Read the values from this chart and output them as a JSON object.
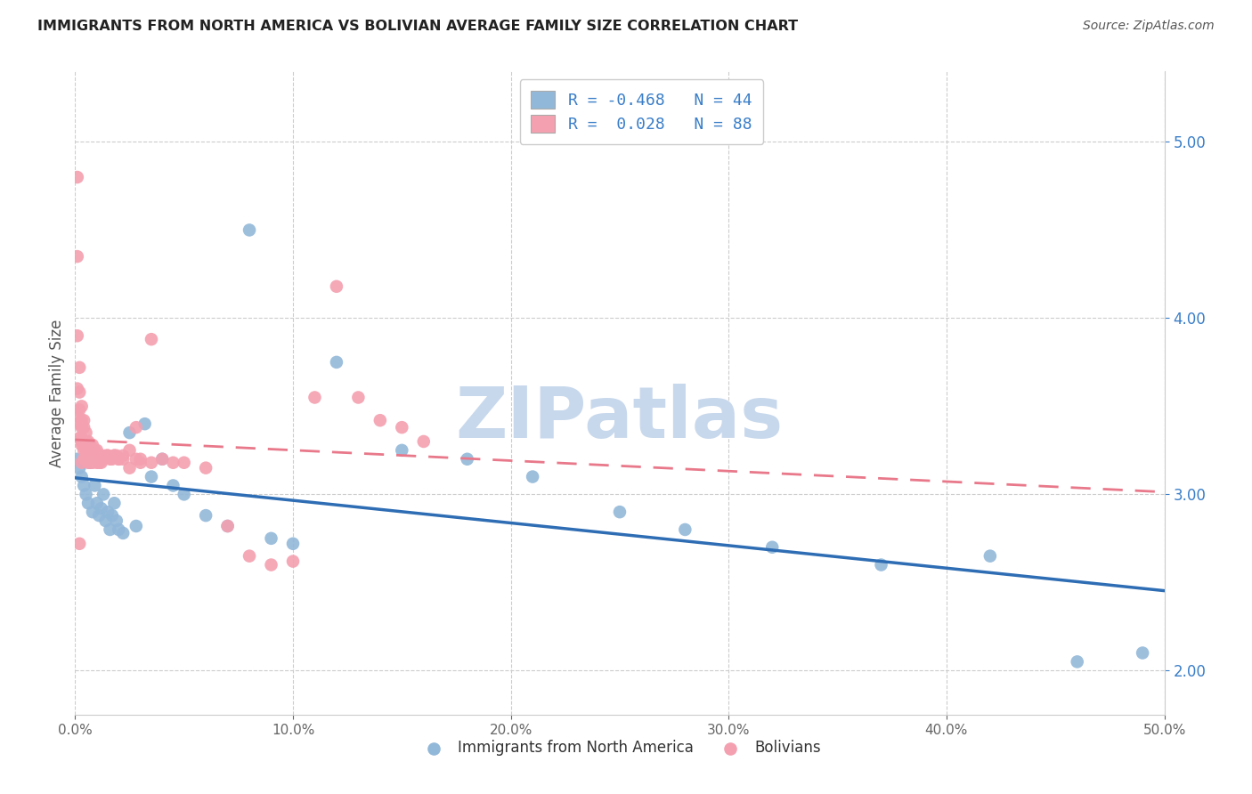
{
  "title": "IMMIGRANTS FROM NORTH AMERICA VS BOLIVIAN AVERAGE FAMILY SIZE CORRELATION CHART",
  "source": "Source: ZipAtlas.com",
  "ylabel": "Average Family Size",
  "yticks": [
    2.0,
    3.0,
    4.0,
    5.0
  ],
  "xlim": [
    0.0,
    0.5
  ],
  "ylim": [
    1.75,
    5.4
  ],
  "blue_color": "#92b8d9",
  "pink_color": "#f4a0b0",
  "blue_line_color": "#2e6db4",
  "pink_line_color": "#e8788a",
  "watermark_color": "#c8d8ec",
  "background_color": "#ffffff",
  "grid_color": "#cccccc",
  "title_color": "#222222",
  "ytick_color": "#3a7ec8",
  "blue_points_x": [
    0.001,
    0.002,
    0.003,
    0.004,
    0.005,
    0.006,
    0.007,
    0.008,
    0.009,
    0.01,
    0.011,
    0.012,
    0.013,
    0.014,
    0.015,
    0.016,
    0.017,
    0.018,
    0.019,
    0.02,
    0.022,
    0.025,
    0.028,
    0.032,
    0.035,
    0.04,
    0.045,
    0.05,
    0.06,
    0.07,
    0.08,
    0.09,
    0.1,
    0.12,
    0.15,
    0.18,
    0.21,
    0.25,
    0.28,
    0.32,
    0.37,
    0.42,
    0.46,
    0.49
  ],
  "blue_points_y": [
    3.2,
    3.15,
    3.1,
    3.05,
    3.0,
    2.95,
    3.18,
    2.9,
    3.05,
    2.95,
    2.88,
    2.92,
    3.0,
    2.85,
    2.9,
    2.8,
    2.88,
    2.95,
    2.85,
    2.8,
    2.78,
    3.35,
    2.82,
    3.4,
    3.1,
    3.2,
    3.05,
    3.0,
    2.88,
    2.82,
    4.5,
    2.75,
    2.72,
    3.75,
    3.25,
    3.2,
    3.1,
    2.9,
    2.8,
    2.7,
    2.6,
    2.65,
    2.05,
    2.1
  ],
  "pink_points_x": [
    0.001,
    0.001,
    0.001,
    0.001,
    0.001,
    0.002,
    0.002,
    0.002,
    0.002,
    0.002,
    0.003,
    0.003,
    0.003,
    0.003,
    0.003,
    0.004,
    0.004,
    0.004,
    0.004,
    0.004,
    0.005,
    0.005,
    0.005,
    0.005,
    0.006,
    0.006,
    0.006,
    0.006,
    0.007,
    0.007,
    0.007,
    0.008,
    0.008,
    0.008,
    0.009,
    0.009,
    0.01,
    0.01,
    0.01,
    0.011,
    0.011,
    0.012,
    0.012,
    0.013,
    0.014,
    0.015,
    0.016,
    0.017,
    0.018,
    0.019,
    0.02,
    0.022,
    0.025,
    0.028,
    0.03,
    0.035,
    0.04,
    0.045,
    0.05,
    0.06,
    0.07,
    0.08,
    0.09,
    0.1,
    0.11,
    0.12,
    0.13,
    0.14,
    0.15,
    0.16,
    0.003,
    0.004,
    0.005,
    0.006,
    0.007,
    0.008,
    0.01,
    0.012,
    0.015,
    0.018,
    0.02,
    0.022,
    0.025,
    0.028,
    0.03,
    0.035,
    0.002,
    0.003
  ],
  "pink_points_y": [
    4.8,
    4.35,
    3.9,
    3.6,
    3.45,
    3.72,
    3.58,
    3.48,
    3.4,
    3.32,
    3.5,
    3.42,
    3.38,
    3.32,
    3.28,
    3.42,
    3.38,
    3.3,
    3.25,
    3.2,
    3.35,
    3.3,
    3.25,
    3.2,
    3.3,
    3.25,
    3.2,
    3.18,
    3.28,
    3.22,
    3.18,
    3.28,
    3.22,
    3.18,
    3.25,
    3.2,
    3.25,
    3.2,
    3.18,
    3.22,
    3.18,
    3.22,
    3.18,
    3.2,
    3.22,
    3.22,
    3.2,
    3.2,
    3.22,
    3.22,
    3.2,
    3.22,
    3.25,
    3.38,
    3.2,
    3.88,
    3.2,
    3.18,
    3.18,
    3.15,
    2.82,
    2.65,
    2.6,
    2.62,
    3.55,
    4.18,
    3.55,
    3.42,
    3.38,
    3.3,
    3.3,
    3.28,
    3.25,
    3.22,
    3.22,
    3.2,
    3.2,
    3.2,
    3.22,
    3.22,
    3.2,
    3.2,
    3.15,
    3.2,
    3.18,
    3.18,
    2.72,
    3.18
  ]
}
